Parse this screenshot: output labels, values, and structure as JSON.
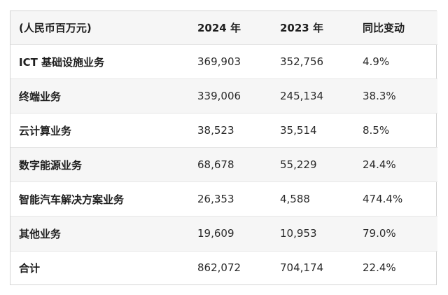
{
  "table": {
    "headers": [
      "(人民币百万元)",
      "2024 年",
      "2023 年",
      "同比变动"
    ],
    "rows": [
      [
        "ICT 基础设施业务",
        "369,903",
        "352,756",
        "4.9%"
      ],
      [
        "终端业务",
        "339,006",
        "245,134",
        "38.3%"
      ],
      [
        "云计算业务",
        "38,523",
        "35,514",
        "8.5%"
      ],
      [
        "数字能源业务",
        "68,678",
        "55,229",
        "24.4%"
      ],
      [
        "智能汽车解决方案业务",
        "26,353",
        "4,588",
        "474.4%"
      ],
      [
        "其他业务",
        "19,609",
        "10,953",
        "79.0%"
      ],
      [
        "合计",
        "862,072",
        "704,174",
        "22.4%"
      ]
    ]
  },
  "colors": {
    "alt_row_background": "#f6f6f6",
    "border": "#d4d4d4"
  }
}
